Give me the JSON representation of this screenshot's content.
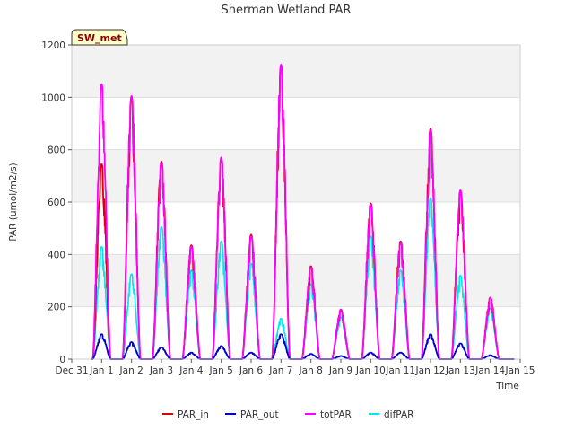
{
  "chart_data": {
    "type": "line",
    "title": "Sherman Wetland PAR",
    "xlabel": "Time",
    "ylabel": "PAR (umol/m2/s)",
    "ylim": [
      0,
      1200
    ],
    "yticks": [
      0,
      200,
      400,
      600,
      800,
      1000,
      1200
    ],
    "xlim": [
      0,
      15
    ],
    "xtick_labels": [
      "Dec 31",
      "Jan 1",
      "Jan 2",
      "Jan 3",
      "Jan 4",
      "Jan 5",
      "Jan 6",
      "Jan 7",
      "Jan 8",
      "Jan 9",
      "Jan 10",
      "Jan 11",
      "Jan 12",
      "Jan 13",
      "Jan 14",
      "Jan 15"
    ],
    "grid": true,
    "badge": "SW_met",
    "legend_position": "bottom-center",
    "series": [
      {
        "name": "PAR_in",
        "color": "#dd0000",
        "daily_peaks": [
          745,
          1000,
          755,
          435,
          765,
          475,
          1120,
          355,
          185,
          595,
          450,
          880,
          640,
          235
        ]
      },
      {
        "name": "PAR_out",
        "color": "#0000cc",
        "daily_peaks": [
          95,
          65,
          45,
          25,
          50,
          25,
          95,
          20,
          12,
          25,
          25,
          95,
          60,
          15
        ]
      },
      {
        "name": "totPAR",
        "color": "#ff00ff",
        "daily_peaks": [
          1050,
          1005,
          750,
          430,
          770,
          470,
          1125,
          350,
          190,
          590,
          445,
          875,
          645,
          235
        ]
      },
      {
        "name": "difPAR",
        "color": "#00e5ee",
        "daily_peaks": [
          430,
          325,
          505,
          340,
          450,
          365,
          155,
          285,
          160,
          470,
          340,
          615,
          320,
          195
        ]
      }
    ]
  }
}
